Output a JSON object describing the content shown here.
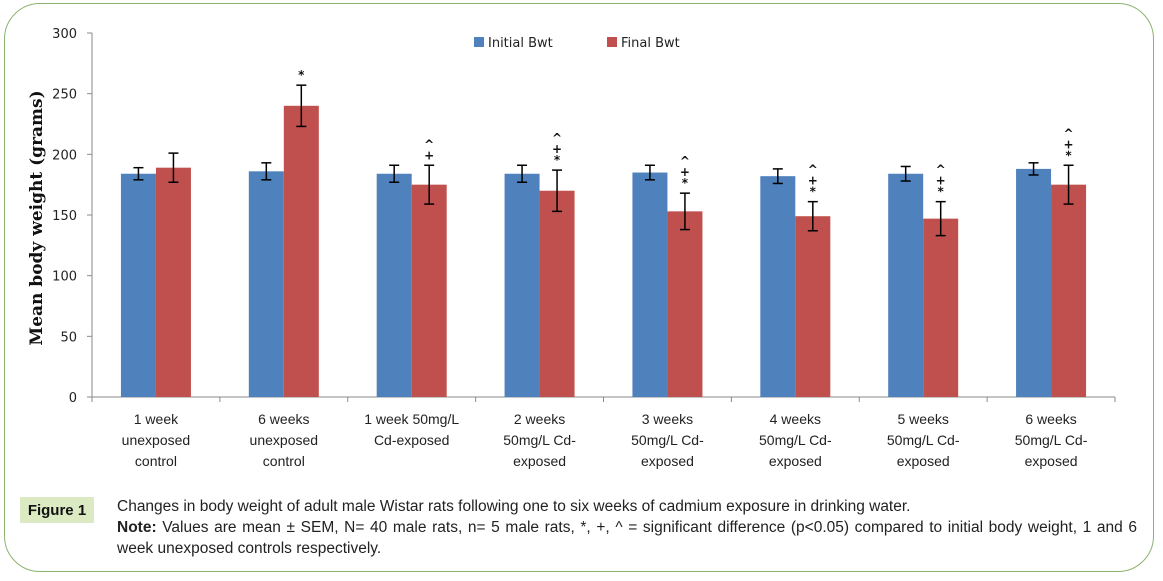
{
  "figure": {
    "badge": "Figure 1",
    "caption_line": "Changes in body weight of adult male Wistar rats following one to six weeks of cadmium exposure in drinking water.",
    "note_label": "Note:",
    "note_text": " Values are mean ± SEM, N= 40 male rats, n= 5 male rats, *, +, ^ = significant difference (p<0.05) compared to initial body weight, 1 and 6 week unexposed controls respectively."
  },
  "chart_data": {
    "type": "bar",
    "title": "",
    "xlabel": "",
    "ylabel": "Mean body weight (grams)",
    "ylim": [
      0,
      300
    ],
    "yticks": [
      0,
      50,
      100,
      150,
      200,
      250,
      300
    ],
    "grid": false,
    "legend_position": "top-center",
    "categories": [
      [
        "1 week",
        "unexposed",
        "control"
      ],
      [
        "6 weeks",
        "unexposed",
        "control"
      ],
      [
        "1 week 50mg/L",
        "Cd-exposed"
      ],
      [
        "2 weeks",
        "50mg/L  Cd-",
        "exposed"
      ],
      [
        "3 weeks",
        "50mg/L  Cd-",
        "exposed"
      ],
      [
        "4 weeks",
        "50mg/L  Cd-",
        "exposed"
      ],
      [
        "5 weeks",
        "50mg/L  Cd-",
        "exposed"
      ],
      [
        "6 weeks",
        "50mg/L  Cd-",
        "exposed"
      ]
    ],
    "series": [
      {
        "name": "Initial Bwt",
        "color": "#4f81bd",
        "values": [
          184,
          186,
          184,
          184,
          185,
          182,
          184,
          188
        ],
        "errors": [
          5,
          7,
          7,
          7,
          6,
          6,
          6,
          5
        ],
        "markers": [
          [],
          [],
          [],
          [],
          [],
          [],
          [],
          []
        ]
      },
      {
        "name": "Final Bwt",
        "color": "#c0504d",
        "values": [
          189,
          240,
          175,
          170,
          153,
          149,
          147,
          175
        ],
        "errors": [
          12,
          17,
          16,
          17,
          15,
          12,
          14,
          16
        ],
        "markers": [
          [],
          [
            "*"
          ],
          [
            "+",
            "^"
          ],
          [
            "*",
            "+",
            "^"
          ],
          [
            "*",
            "+",
            "^"
          ],
          [
            "*",
            "+",
            "^"
          ],
          [
            "*",
            "+",
            "^"
          ],
          [
            "*",
            "+",
            "^"
          ]
        ]
      }
    ]
  }
}
